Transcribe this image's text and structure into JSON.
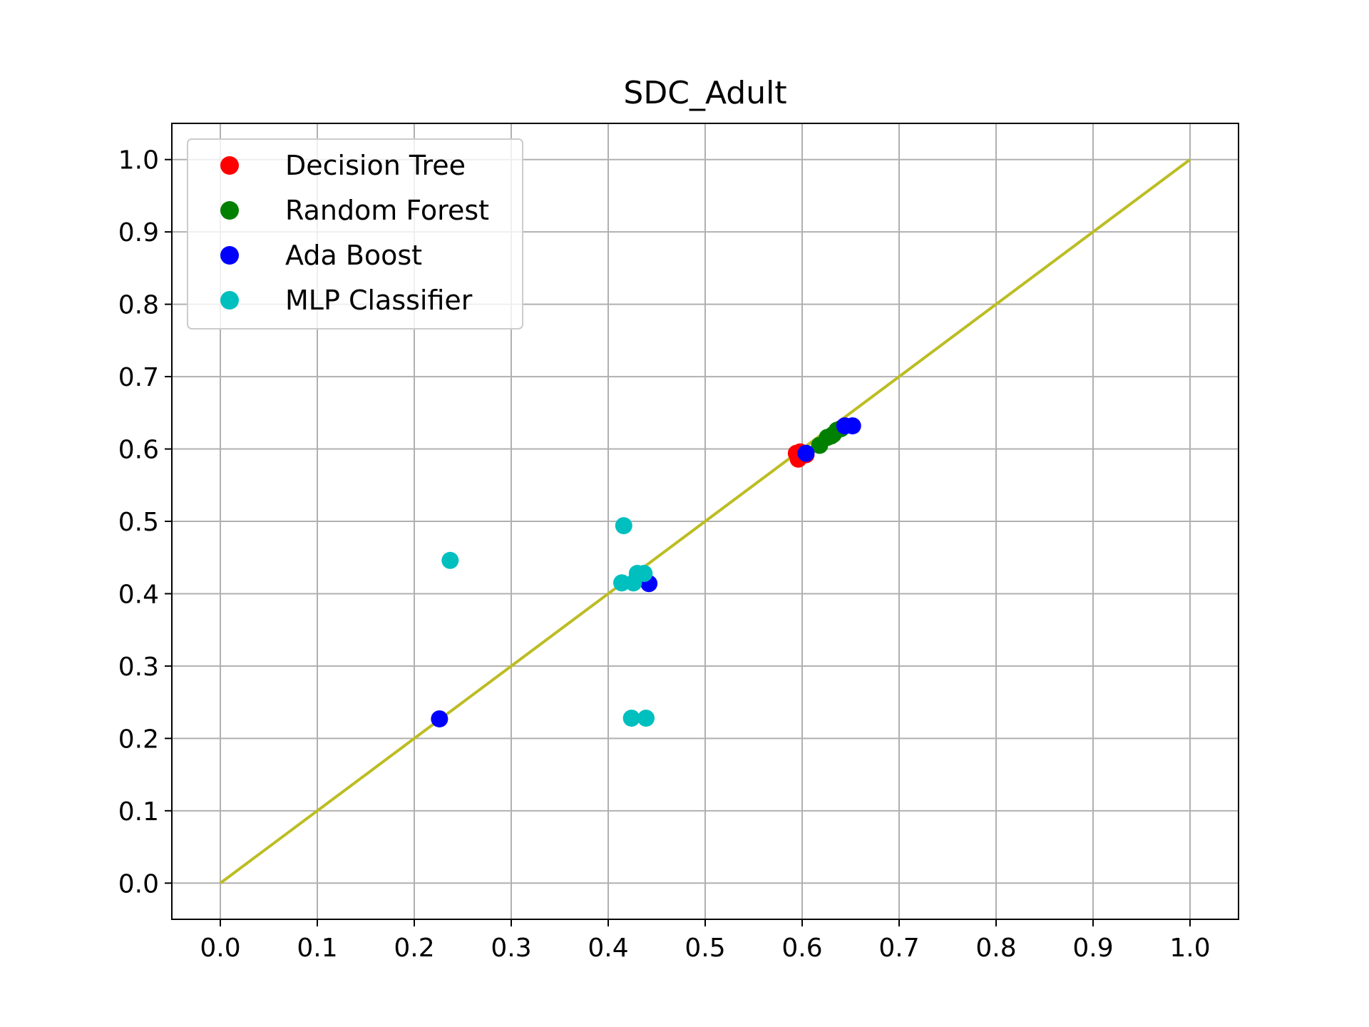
{
  "chart_data": {
    "type": "scatter",
    "title": "SDC_Adult",
    "xlabel": "",
    "ylabel": "",
    "xlim": [
      -0.05,
      1.05
    ],
    "ylim": [
      -0.05,
      1.05
    ],
    "xticks": [
      0.0,
      0.1,
      0.2,
      0.3,
      0.4,
      0.5,
      0.6,
      0.7,
      0.8,
      0.9,
      1.0
    ],
    "yticks": [
      0.0,
      0.1,
      0.2,
      0.3,
      0.4,
      0.5,
      0.6,
      0.7,
      0.8,
      0.9,
      1.0
    ],
    "xtick_labels": [
      "0.0",
      "0.1",
      "0.2",
      "0.3",
      "0.4",
      "0.5",
      "0.6",
      "0.7",
      "0.8",
      "0.9",
      "1.0"
    ],
    "ytick_labels": [
      "0.0",
      "0.1",
      "0.2",
      "0.3",
      "0.4",
      "0.5",
      "0.6",
      "0.7",
      "0.8",
      "0.9",
      "1.0"
    ],
    "grid": true,
    "legend_position": "top-left",
    "series": [
      {
        "name": "Decision Tree",
        "color": "#ff0000",
        "points": [
          [
            0.594,
            0.594
          ],
          [
            0.596,
            0.586
          ],
          [
            0.6,
            0.592
          ],
          [
            0.604,
            0.592
          ],
          [
            0.598,
            0.596
          ]
        ]
      },
      {
        "name": "Random Forest",
        "color": "#008000",
        "points": [
          [
            0.618,
            0.605
          ],
          [
            0.626,
            0.616
          ],
          [
            0.632,
            0.62
          ],
          [
            0.636,
            0.626
          ],
          [
            0.64,
            0.628
          ],
          [
            0.63,
            0.618
          ]
        ]
      },
      {
        "name": "Ada Boost",
        "color": "#0000ff",
        "points": [
          [
            0.226,
            0.227
          ],
          [
            0.442,
            0.414
          ],
          [
            0.604,
            0.594
          ],
          [
            0.644,
            0.632
          ],
          [
            0.652,
            0.632
          ]
        ]
      },
      {
        "name": "MLP Classifier",
        "color": "#00bfbf",
        "points": [
          [
            0.237,
            0.446
          ],
          [
            0.416,
            0.494
          ],
          [
            0.414,
            0.415
          ],
          [
            0.426,
            0.415
          ],
          [
            0.43,
            0.428
          ],
          [
            0.437,
            0.428
          ],
          [
            0.424,
            0.228
          ],
          [
            0.439,
            0.228
          ]
        ]
      }
    ],
    "reference_line": {
      "color": "#bcbd22",
      "points": [
        [
          0.0,
          0.0
        ],
        [
          1.0,
          1.0
        ]
      ]
    }
  }
}
